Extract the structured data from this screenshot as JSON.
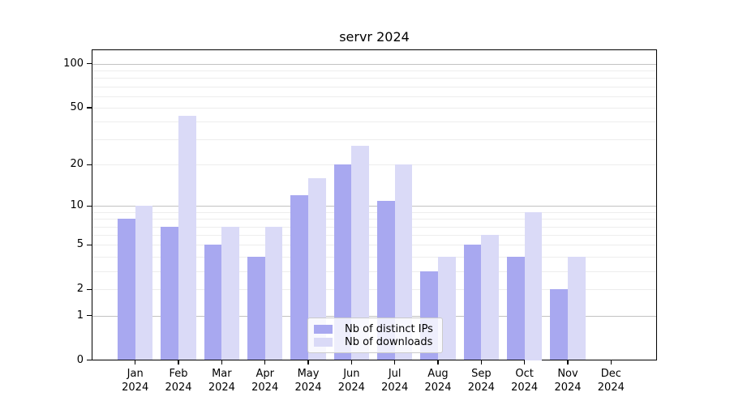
{
  "chart_data": {
    "type": "bar",
    "title": "servr 2024",
    "categories": [
      "Jan",
      "Feb",
      "Mar",
      "Apr",
      "May",
      "Jun",
      "Jul",
      "Aug",
      "Sep",
      "Oct",
      "Nov",
      "Dec"
    ],
    "x_year": "2024",
    "series": [
      {
        "name": "Nb of distinct IPs",
        "color": "#a8a8f0",
        "values": [
          8,
          7,
          5,
          4,
          12,
          20,
          11,
          3,
          5,
          4,
          2,
          0
        ]
      },
      {
        "name": "Nb of downloads",
        "color": "#dadaf7",
        "values": [
          10,
          44,
          7,
          7,
          16,
          27,
          20,
          4,
          6,
          9,
          4,
          0
        ]
      }
    ],
    "y_ticks": [
      0,
      1,
      2,
      5,
      10,
      20,
      50,
      100
    ],
    "y_scale": "log1p",
    "ylim": [
      0,
      110
    ],
    "grid": true,
    "grid_major_values": [
      1,
      10,
      100
    ],
    "grid_minor_values": [
      2,
      3,
      4,
      5,
      6,
      7,
      8,
      9,
      20,
      30,
      40,
      50,
      60,
      70,
      80,
      90
    ],
    "legend_position": "lower center",
    "colors": {
      "axis": "#000000",
      "grid_major": "#c2c2c2",
      "grid_minor": "#ededed"
    }
  }
}
